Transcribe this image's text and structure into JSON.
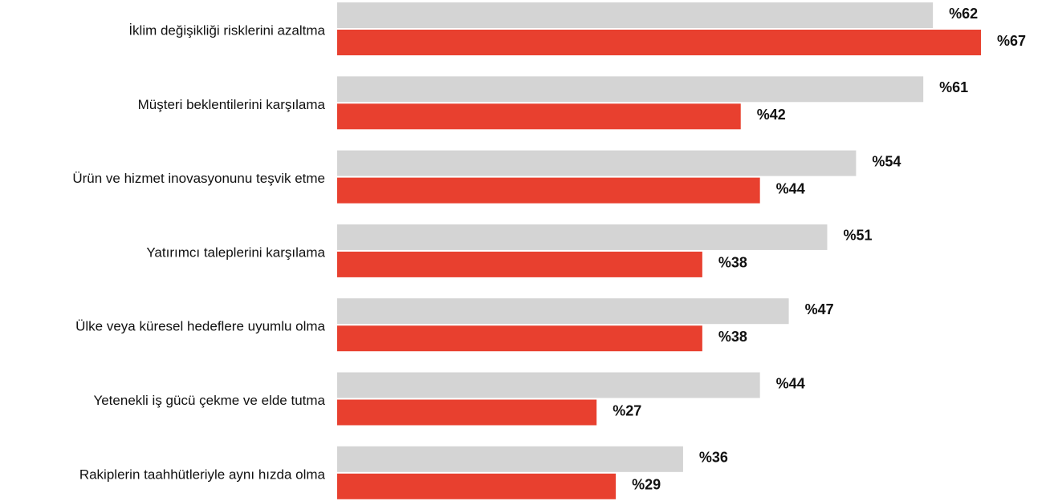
{
  "chart_data": {
    "type": "bar",
    "orientation": "horizontal",
    "categories": [
      "İklim değişikliği risklerini azaltma",
      "Müşteri beklentilerini karşılama",
      "Ürün ve hizmet inovasyonunu teşvik etme",
      "Yatırımcı taleplerini karşılama",
      "Ülke veya küresel hedeflere uyumlu olma",
      "Yetenekli iş gücü çekme ve elde tutma",
      "Rakiplerin taahhütleriyle aynı hızda olma"
    ],
    "series": [
      {
        "color": "#d4d4d4",
        "values": [
          62,
          61,
          54,
          51,
          47,
          44,
          36
        ],
        "value_labels": [
          "%62",
          "%61",
          "%54",
          "%51",
          "%47",
          "%44",
          "%36"
        ]
      },
      {
        "color": "#e8402f",
        "values": [
          67,
          42,
          44,
          38,
          38,
          27,
          29
        ],
        "value_labels": [
          "%67",
          "%42",
          "%44",
          "%38",
          "%38",
          "%27",
          "%29"
        ]
      }
    ]
  }
}
